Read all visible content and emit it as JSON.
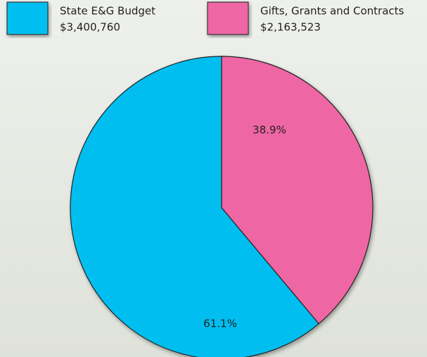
{
  "chart_data": {
    "type": "pie",
    "categories": [
      "State E&G Budget",
      "Gifts, Grants and Contracts"
    ],
    "amounts": [
      "$3,400,760",
      "$2,163,523"
    ],
    "values": [
      61.1,
      38.9
    ],
    "value_labels": [
      "61.1%",
      "38.9%"
    ],
    "colors": [
      "#00bff0",
      "#ef66a4"
    ]
  }
}
